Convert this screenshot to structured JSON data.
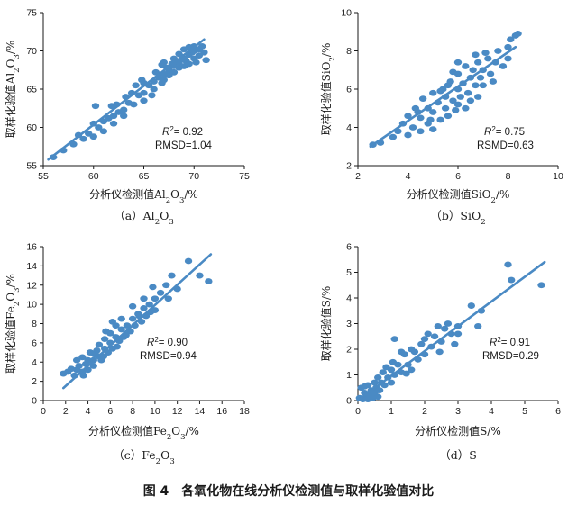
{
  "figure_title": "图 4　各氧化物在线分析仪检测值与取样化验值对比",
  "colors": {
    "points": "#4a8ac4",
    "line": "#4a8ac4",
    "axis": "#1a1a1a"
  },
  "chart_data": [
    {
      "type": "scatter",
      "caption": "（a）Al2O3",
      "caption_parts": {
        "label": "（a）",
        "formula": [
          [
            "Al",
            ""
          ],
          [
            "2",
            "sub"
          ],
          [
            "O",
            ""
          ],
          [
            "3",
            "sub"
          ]
        ]
      },
      "xlabel": "分析仪检测值Al2O3/%",
      "xlabel_parts": [
        [
          "分析仪检测值Al",
          ""
        ],
        [
          "2",
          "sub"
        ],
        [
          "O",
          ""
        ],
        [
          "3",
          "sub"
        ],
        [
          "/%",
          ""
        ]
      ],
      "ylabel": "取样化验值Al2O3/%",
      "ylabel_parts": [
        [
          "取样化验值Al",
          ""
        ],
        [
          "2",
          "sub"
        ],
        [
          "O",
          ""
        ],
        [
          "3",
          "sub"
        ],
        [
          "/%",
          ""
        ]
      ],
      "xlim": [
        55,
        75
      ],
      "ylim": [
        55,
        75
      ],
      "xticks": [
        "55",
        "60",
        "65",
        "70",
        "75"
      ],
      "yticks": [
        "55",
        "60",
        "65",
        "70",
        "75"
      ],
      "stats": {
        "r2_prefix": "R",
        "r2_exp": "2",
        "r2_value": "= 0.92",
        "rmsd": "RMSD=1.04"
      },
      "fit_line": [
        [
          55.5,
          55.8
        ],
        [
          71,
          71.5
        ]
      ],
      "points": [
        [
          56,
          56.1
        ],
        [
          57,
          57
        ],
        [
          58,
          57.8
        ],
        [
          58.5,
          59
        ],
        [
          59,
          58.5
        ],
        [
          59.5,
          59.2
        ],
        [
          60,
          58.8
        ],
        [
          60,
          60.5
        ],
        [
          60.2,
          62.8
        ],
        [
          60.5,
          60
        ],
        [
          61,
          60.8
        ],
        [
          61,
          59.5
        ],
        [
          61.5,
          61.2
        ],
        [
          62,
          61.5
        ],
        [
          62,
          60.5
        ],
        [
          62.3,
          63
        ],
        [
          62.5,
          62
        ],
        [
          63,
          62.3
        ],
        [
          63,
          61.5
        ],
        [
          63.5,
          63.2
        ],
        [
          63.8,
          64.5
        ],
        [
          64,
          63
        ],
        [
          64.2,
          65.5
        ],
        [
          64.5,
          64.2
        ],
        [
          65,
          64.5
        ],
        [
          65,
          65.8
        ],
        [
          65,
          63.5
        ],
        [
          65.5,
          65.5
        ],
        [
          66,
          66
        ],
        [
          66,
          65
        ],
        [
          66.2,
          67.2
        ],
        [
          66.5,
          66.5
        ],
        [
          66.8,
          65.8
        ],
        [
          67,
          67
        ],
        [
          67,
          68.5
        ],
        [
          67,
          66.2
        ],
        [
          67.3,
          67.8
        ],
        [
          67.5,
          67.5
        ],
        [
          67.5,
          66.8
        ],
        [
          67.8,
          68.3
        ],
        [
          68,
          68
        ],
        [
          68,
          69
        ],
        [
          68,
          67.2
        ],
        [
          68.2,
          68.6
        ],
        [
          68.5,
          68.5
        ],
        [
          68.5,
          67.8
        ],
        [
          68.5,
          69.6
        ],
        [
          68.8,
          69.2
        ],
        [
          69,
          69
        ],
        [
          69,
          68
        ],
        [
          69,
          70.2
        ],
        [
          69.2,
          68.7
        ],
        [
          69.5,
          69.5
        ],
        [
          69.5,
          70.5
        ],
        [
          69.5,
          68.3
        ],
        [
          69.8,
          69.8
        ],
        [
          70,
          70
        ],
        [
          70,
          69
        ],
        [
          70,
          70.6
        ],
        [
          70.2,
          68.5
        ],
        [
          70.5,
          70.2
        ],
        [
          70.5,
          69.4
        ],
        [
          70.8,
          70.6
        ],
        [
          71,
          69.8
        ],
        [
          71.2,
          68.8
        ],
        [
          65.8,
          64.2
        ],
        [
          64.8,
          66.2
        ],
        [
          66.8,
          68.2
        ],
        [
          63.2,
          64
        ],
        [
          61.8,
          62.8
        ]
      ]
    },
    {
      "type": "scatter",
      "caption": "（b）SiO2",
      "caption_parts": {
        "label": "（b）",
        "formula": [
          [
            "SiO",
            ""
          ],
          [
            "2",
            "sub"
          ]
        ]
      },
      "xlabel": "分析仪检测值SiO2/%",
      "xlabel_parts": [
        [
          "分析仪检测值SiO",
          ""
        ],
        [
          "2",
          "sub"
        ],
        [
          "/%",
          ""
        ]
      ],
      "ylabel": "取样化验值SiO2/%",
      "ylabel_parts": [
        [
          "取样化验值SiO",
          ""
        ],
        [
          "2",
          "sub"
        ],
        [
          "/%",
          ""
        ]
      ],
      "xlim": [
        2,
        10
      ],
      "ylim": [
        2,
        10
      ],
      "xticks": [
        "2",
        "4",
        "6",
        "8",
        "10"
      ],
      "yticks": [
        "2",
        "4",
        "6",
        "8",
        "10"
      ],
      "stats": {
        "r2_prefix": "R",
        "r2_exp": "2",
        "r2_value": "= 0.75",
        "rmsd": "RSMD=0.63"
      },
      "fit_line": [
        [
          2.5,
          3.0
        ],
        [
          8.3,
          8.2
        ]
      ],
      "points": [
        [
          2.6,
          3.1
        ],
        [
          2.9,
          3.2
        ],
        [
          3.4,
          3.5
        ],
        [
          3.6,
          3.8
        ],
        [
          3.8,
          4.2
        ],
        [
          4,
          3.6
        ],
        [
          4,
          4.6
        ],
        [
          4.2,
          4
        ],
        [
          4.3,
          5
        ],
        [
          4.5,
          4.5
        ],
        [
          4.5,
          3.8
        ],
        [
          4.6,
          5.5
        ],
        [
          4.8,
          4.2
        ],
        [
          4.8,
          5
        ],
        [
          5,
          4.8
        ],
        [
          5,
          5.8
        ],
        [
          5,
          3.9
        ],
        [
          5.2,
          5.3
        ],
        [
          5.3,
          4.4
        ],
        [
          5.4,
          6
        ],
        [
          5.5,
          5
        ],
        [
          5.5,
          5.6
        ],
        [
          5.6,
          4.6
        ],
        [
          5.7,
          6.4
        ],
        [
          5.8,
          5.4
        ],
        [
          5.9,
          4.9
        ],
        [
          6,
          6
        ],
        [
          6,
          5.2
        ],
        [
          6,
          6.8
        ],
        [
          6.1,
          5.6
        ],
        [
          6.2,
          6.3
        ],
        [
          6.3,
          7.2
        ],
        [
          6.4,
          5.8
        ],
        [
          6.5,
          6.6
        ],
        [
          6.5,
          5.4
        ],
        [
          6.6,
          7
        ],
        [
          6.7,
          6.2
        ],
        [
          6.8,
          7.4
        ],
        [
          6.9,
          6.6
        ],
        [
          7,
          6.2
        ],
        [
          7,
          7
        ],
        [
          7.2,
          7.6
        ],
        [
          7.3,
          6.8
        ],
        [
          7.5,
          7.4
        ],
        [
          7.6,
          8
        ],
        [
          7.8,
          7.2
        ],
        [
          8,
          8.2
        ],
        [
          8,
          7.6
        ],
        [
          8.1,
          8.6
        ],
        [
          8.3,
          8.8
        ],
        [
          8.4,
          8.9
        ],
        [
          7.4,
          6.4
        ],
        [
          6.8,
          5.6
        ],
        [
          5.8,
          6.9
        ],
        [
          4.9,
          4.4
        ],
        [
          4.4,
          4.8
        ],
        [
          5.6,
          6.2
        ],
        [
          6.3,
          5
        ],
        [
          7.1,
          7.9
        ],
        [
          6,
          7.4
        ],
        [
          5.3,
          5.9
        ],
        [
          6.7,
          7.8
        ]
      ]
    },
    {
      "type": "scatter",
      "caption": "（c）Fe2O3",
      "caption_parts": {
        "label": "（c）",
        "formula": [
          [
            "Fe",
            ""
          ],
          [
            "2",
            "sub"
          ],
          [
            "O",
            ""
          ],
          [
            "3",
            "sub"
          ]
        ]
      },
      "xlabel": "分析仪检测值Fe2O3/%",
      "xlabel_parts": [
        [
          "分析仪检测值Fe",
          ""
        ],
        [
          "2",
          "sub"
        ],
        [
          "O",
          ""
        ],
        [
          "3",
          "sub"
        ],
        [
          "/%",
          ""
        ]
      ],
      "ylabel": "取样化验值Fe2O3/%",
      "ylabel_parts": [
        [
          "取样化验值Fe",
          ""
        ],
        [
          "2",
          "sub"
        ],
        [
          "O",
          ""
        ],
        [
          "3",
          "sub"
        ],
        [
          "/%",
          ""
        ]
      ],
      "xlim": [
        0,
        18
      ],
      "ylim": [
        0,
        16
      ],
      "xticks": [
        "0",
        "2",
        "4",
        "6",
        "8",
        "10",
        "12",
        "14",
        "16",
        "18"
      ],
      "yticks": [
        "0",
        "2",
        "4",
        "6",
        "8",
        "10",
        "12",
        "14",
        "16"
      ],
      "stats": {
        "r2_prefix": "R",
        "r2_exp": "2",
        "r2_value": "= 0.90",
        "rmsd": "RMSD=0.94"
      },
      "fit_line": [
        [
          1.8,
          1.3
        ],
        [
          15,
          15.2
        ]
      ],
      "points": [
        [
          1.8,
          2.8
        ],
        [
          2.2,
          3
        ],
        [
          2.5,
          3.3
        ],
        [
          2.8,
          2.6
        ],
        [
          3,
          3.2
        ],
        [
          3,
          4.2
        ],
        [
          3.2,
          3.6
        ],
        [
          3.5,
          3
        ],
        [
          3.5,
          4.5
        ],
        [
          3.8,
          3.8
        ],
        [
          4,
          4.2
        ],
        [
          4,
          3.2
        ],
        [
          4.2,
          5
        ],
        [
          4.5,
          4.2
        ],
        [
          4.5,
          3.6
        ],
        [
          4.8,
          5.2
        ],
        [
          5,
          4.6
        ],
        [
          5,
          5.8
        ],
        [
          5.2,
          4.2
        ],
        [
          5.5,
          5.4
        ],
        [
          5.5,
          6.4
        ],
        [
          5.8,
          5
        ],
        [
          6,
          6
        ],
        [
          6,
          7
        ],
        [
          6.2,
          5.4
        ],
        [
          6.5,
          6.6
        ],
        [
          6.5,
          7.8
        ],
        [
          6.8,
          6.2
        ],
        [
          7,
          7.4
        ],
        [
          7,
          8.5
        ],
        [
          7.2,
          6.6
        ],
        [
          7.5,
          7.8
        ],
        [
          7.8,
          7.2
        ],
        [
          8,
          8.5
        ],
        [
          8,
          9.8
        ],
        [
          8.2,
          7.8
        ],
        [
          8.5,
          9
        ],
        [
          8.8,
          8.2
        ],
        [
          9,
          9.6
        ],
        [
          9,
          10.6
        ],
        [
          9.2,
          8.8
        ],
        [
          9.5,
          10
        ],
        [
          9.8,
          11.8
        ],
        [
          10,
          10.6
        ],
        [
          10,
          9.4
        ],
        [
          10.5,
          11.2
        ],
        [
          11,
          12
        ],
        [
          11.2,
          10.6
        ],
        [
          11.5,
          13
        ],
        [
          12,
          11.6
        ],
        [
          13,
          14.5
        ],
        [
          14,
          13
        ],
        [
          14.8,
          12.4
        ],
        [
          3.6,
          2.6
        ],
        [
          4.6,
          4.8
        ],
        [
          5.4,
          4.6
        ],
        [
          6.6,
          5.6
        ],
        [
          7.4,
          6.8
        ],
        [
          8.6,
          8.8
        ],
        [
          9.6,
          9.2
        ],
        [
          6.2,
          8.2
        ],
        [
          5.6,
          7.2
        ]
      ]
    },
    {
      "type": "scatter",
      "caption": "（d）S",
      "caption_parts": {
        "label": "（d）",
        "formula": [
          [
            "S",
            ""
          ]
        ]
      },
      "xlabel": "分析仪检测值S/%",
      "xlabel_parts": [
        [
          "分析仪检测值S/%",
          ""
        ]
      ],
      "ylabel": "取样化验值S/%",
      "ylabel_parts": [
        [
          "取样化验值S/%",
          ""
        ]
      ],
      "xlim": [
        0,
        6
      ],
      "ylim": [
        0,
        6
      ],
      "xticks": [
        "0",
        "1",
        "2",
        "3",
        "4",
        "5",
        "6"
      ],
      "yticks": [
        "0",
        "1",
        "2",
        "3",
        "4",
        "5",
        "6"
      ],
      "stats": {
        "r2_prefix": "R",
        "r2_exp": "2",
        "r2_value": "= 0.91",
        "rmsd": "RMSD=0.29"
      },
      "fit_line": [
        [
          0,
          0
        ],
        [
          5.6,
          5.4
        ]
      ],
      "points": [
        [
          0.05,
          0.1
        ],
        [
          0.1,
          0.5
        ],
        [
          0.15,
          0.05
        ],
        [
          0.2,
          0.3
        ],
        [
          0.25,
          0.15
        ],
        [
          0.3,
          0.6
        ],
        [
          0.35,
          0.2
        ],
        [
          0.4,
          0.4
        ],
        [
          0.45,
          0.1
        ],
        [
          0.5,
          0.7
        ],
        [
          0.5,
          0.3
        ],
        [
          0.55,
          0.5
        ],
        [
          0.6,
          0.9
        ],
        [
          0.65,
          0.4
        ],
        [
          0.7,
          0.7
        ],
        [
          0.75,
          1.1
        ],
        [
          0.8,
          0.6
        ],
        [
          0.85,
          1.3
        ],
        [
          0.9,
          0.9
        ],
        [
          1,
          1.2
        ],
        [
          1,
          0.7
        ],
        [
          1.05,
          1.5
        ],
        [
          1.1,
          2.4
        ],
        [
          1.1,
          1
        ],
        [
          1.2,
          1.4
        ],
        [
          1.3,
          1.1
        ],
        [
          1.4,
          1.8
        ],
        [
          1.5,
          1.4
        ],
        [
          1.6,
          1.2
        ],
        [
          1.7,
          1.9
        ],
        [
          1.8,
          1.6
        ],
        [
          1.9,
          2.2
        ],
        [
          2,
          2.4
        ],
        [
          2,
          1.8
        ],
        [
          2.1,
          2.6
        ],
        [
          2.2,
          2.1
        ],
        [
          2.3,
          2.5
        ],
        [
          2.4,
          2.9
        ],
        [
          2.5,
          2.3
        ],
        [
          2.6,
          2.8
        ],
        [
          2.7,
          3
        ],
        [
          2.8,
          2.6
        ],
        [
          2.9,
          2.2
        ],
        [
          3,
          2.6
        ],
        [
          3,
          2.9
        ],
        [
          3.4,
          3.7
        ],
        [
          3.6,
          2.9
        ],
        [
          3.7,
          3.5
        ],
        [
          4.5,
          5.3
        ],
        [
          4.6,
          4.7
        ],
        [
          5.5,
          4.5
        ],
        [
          0.3,
          0.05
        ],
        [
          0.6,
          0.15
        ],
        [
          1.3,
          1.9
        ],
        [
          1.6,
          2
        ],
        [
          0.2,
          0.55
        ],
        [
          2.45,
          1.9
        ],
        [
          1.45,
          1.05
        ]
      ]
    }
  ]
}
